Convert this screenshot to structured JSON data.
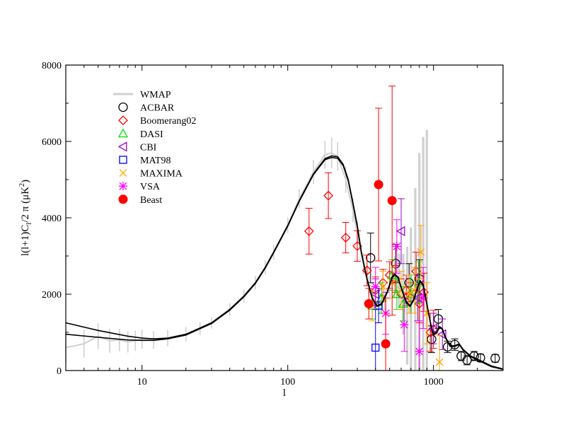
{
  "chart_data": {
    "type": "scatter",
    "xlabel": "l",
    "ylabel_text": "l(l+1)C",
    "ylabel_sub": "l",
    "ylabel_tail": "/2 π (μK",
    "ylabel_sup": "2",
    "ylabel_close": ")",
    "x_scale": "log",
    "xlim": [
      3,
      3000
    ],
    "ylim": [
      0,
      8000
    ],
    "x_tick_labels": [
      {
        "value": 10,
        "label": "10"
      },
      {
        "value": 100,
        "label": "100"
      },
      {
        "value": 1000,
        "label": "1000"
      }
    ],
    "y_tick_labels": [
      {
        "value": 0,
        "label": "0"
      },
      {
        "value": 2000,
        "label": "2000"
      },
      {
        "value": 4000,
        "label": "4000"
      },
      {
        "value": 6000,
        "label": "6000"
      },
      {
        "value": 8000,
        "label": "8000"
      }
    ],
    "grid": false,
    "legend_position": "top-left",
    "legend": [
      {
        "name": "WMAP",
        "marker": "line",
        "color": "#d0d0d0"
      },
      {
        "name": "ACBAR",
        "marker": "circle",
        "color": "#000000"
      },
      {
        "name": "Boomerang02",
        "marker": "diamond",
        "color": "#ff0000"
      },
      {
        "name": "DASI",
        "marker": "triangle-up",
        "color": "#00dd00"
      },
      {
        "name": "CBI",
        "marker": "triangle-left",
        "color": "#9900cc"
      },
      {
        "name": "MAT98",
        "marker": "square",
        "color": "#0000ff"
      },
      {
        "name": "MAXIMA",
        "marker": "x",
        "color": "#ffa500"
      },
      {
        "name": "VSA",
        "marker": "star",
        "color": "#ff00ff"
      },
      {
        "name": "Beast",
        "marker": "filled-circle",
        "color": "#ff0000"
      }
    ],
    "series": [
      {
        "name": "WMAP",
        "type": "band",
        "color": "#d0d0d0",
        "points": [
          [
            3,
            600
          ],
          [
            4,
            700
          ],
          [
            5,
            900
          ],
          [
            6,
            780
          ],
          [
            7,
            800
          ],
          [
            8,
            750
          ],
          [
            9,
            780
          ],
          [
            10,
            820
          ],
          [
            12,
            800
          ],
          [
            15,
            850
          ],
          [
            20,
            950
          ],
          [
            25,
            1100
          ],
          [
            30,
            1250
          ],
          [
            40,
            1600
          ],
          [
            50,
            1950
          ],
          [
            60,
            2300
          ],
          [
            70,
            2700
          ],
          [
            80,
            3100
          ],
          [
            100,
            3800
          ],
          [
            120,
            4500
          ],
          [
            150,
            5200
          ],
          [
            180,
            5650
          ],
          [
            200,
            5700
          ],
          [
            220,
            5600
          ],
          [
            250,
            5000
          ],
          [
            280,
            4200
          ],
          [
            300,
            3600
          ],
          [
            330,
            2800
          ],
          [
            360,
            2200
          ],
          [
            400,
            1800
          ],
          [
            430,
            1750
          ],
          [
            460,
            1900
          ],
          [
            500,
            2200
          ],
          [
            540,
            2450
          ],
          [
            580,
            2350
          ],
          [
            620,
            2000
          ],
          [
            660,
            1700
          ],
          [
            700,
            1750
          ],
          [
            750,
            2000
          ],
          [
            800,
            2200
          ],
          [
            850,
            2100
          ],
          [
            900,
            1800
          ]
        ],
        "error": [
          [
            3,
            400
          ],
          [
            10,
            250
          ],
          [
            30,
            150
          ],
          [
            100,
            200
          ],
          [
            200,
            400
          ],
          [
            300,
            300
          ],
          [
            400,
            250
          ],
          [
            500,
            350
          ],
          [
            600,
            800
          ],
          [
            700,
            2000
          ],
          [
            800,
            3500
          ],
          [
            900,
            4500
          ]
        ]
      },
      {
        "name": "Model",
        "type": "line",
        "color": "#000000",
        "points": [
          [
            3,
            1250
          ],
          [
            5,
            1050
          ],
          [
            8,
            900
          ],
          [
            10,
            850
          ],
          [
            12,
            830
          ],
          [
            15,
            850
          ],
          [
            20,
            950
          ],
          [
            30,
            1250
          ],
          [
            40,
            1600
          ],
          [
            50,
            1950
          ],
          [
            60,
            2300
          ],
          [
            70,
            2700
          ],
          [
            80,
            3100
          ],
          [
            100,
            3800
          ],
          [
            120,
            4450
          ],
          [
            150,
            5150
          ],
          [
            180,
            5550
          ],
          [
            200,
            5620
          ],
          [
            220,
            5600
          ],
          [
            240,
            5400
          ],
          [
            260,
            5000
          ],
          [
            280,
            4400
          ],
          [
            300,
            3800
          ],
          [
            320,
            3100
          ],
          [
            350,
            2400
          ],
          [
            380,
            1900
          ],
          [
            410,
            1700
          ],
          [
            440,
            1750
          ],
          [
            480,
            2050
          ],
          [
            520,
            2450
          ],
          [
            540,
            2530
          ],
          [
            570,
            2450
          ],
          [
            610,
            2100
          ],
          [
            650,
            1800
          ],
          [
            690,
            1700
          ],
          [
            730,
            1850
          ],
          [
            780,
            2200
          ],
          [
            810,
            2350
          ],
          [
            850,
            2250
          ],
          [
            900,
            1750
          ],
          [
            960,
            1200
          ],
          [
            1000,
            950
          ],
          [
            1050,
            1000
          ],
          [
            1100,
            1150
          ],
          [
            1150,
            1100
          ],
          [
            1200,
            900
          ],
          [
            1300,
            650
          ],
          [
            1400,
            650
          ],
          [
            1500,
            700
          ],
          [
            1600,
            550
          ],
          [
            1800,
            380
          ],
          [
            2000,
            300
          ],
          [
            2200,
            220
          ],
          [
            2500,
            120
          ],
          [
            3000,
            40
          ]
        ]
      },
      {
        "name": "Model2",
        "type": "line",
        "color": "#000000",
        "points": [
          [
            3,
            950
          ],
          [
            5,
            870
          ],
          [
            8,
            800
          ],
          [
            10,
            790
          ],
          [
            12,
            790
          ],
          [
            15,
            830
          ],
          [
            20,
            930
          ],
          [
            30,
            1230
          ],
          [
            40,
            1580
          ],
          [
            50,
            1930
          ],
          [
            60,
            2280
          ],
          [
            70,
            2680
          ],
          [
            80,
            3080
          ],
          [
            100,
            3780
          ],
          [
            120,
            4430
          ],
          [
            150,
            5130
          ],
          [
            180,
            5520
          ],
          [
            200,
            5580
          ],
          [
            220,
            5560
          ],
          [
            240,
            5370
          ],
          [
            260,
            4970
          ],
          [
            280,
            4370
          ],
          [
            300,
            3770
          ],
          [
            320,
            3080
          ],
          [
            350,
            2380
          ],
          [
            380,
            1880
          ],
          [
            410,
            1680
          ],
          [
            440,
            1730
          ],
          [
            480,
            2030
          ],
          [
            520,
            2430
          ],
          [
            540,
            2510
          ],
          [
            570,
            2430
          ],
          [
            610,
            2080
          ],
          [
            650,
            1780
          ],
          [
            690,
            1680
          ],
          [
            730,
            1830
          ],
          [
            780,
            2180
          ],
          [
            810,
            2330
          ],
          [
            850,
            2230
          ],
          [
            900,
            1730
          ],
          [
            960,
            1180
          ],
          [
            1000,
            930
          ],
          [
            1050,
            980
          ],
          [
            1100,
            1130
          ],
          [
            1150,
            1080
          ],
          [
            1200,
            880
          ],
          [
            1300,
            630
          ],
          [
            1400,
            630
          ],
          [
            1500,
            680
          ],
          [
            1600,
            530
          ],
          [
            1800,
            360
          ],
          [
            2000,
            280
          ],
          [
            2200,
            200
          ],
          [
            2500,
            100
          ],
          [
            3000,
            30
          ]
        ]
      },
      {
        "name": "ACBAR",
        "marker": "circle",
        "color": "#000000",
        "points": [
          [
            370,
            2950,
            650
          ],
          [
            550,
            2800,
            500
          ],
          [
            680,
            2300,
            500
          ],
          [
            800,
            2400,
            500
          ],
          [
            970,
            820,
            350
          ],
          [
            1080,
            1350,
            250
          ],
          [
            1250,
            620,
            150
          ],
          [
            1400,
            680,
            150
          ],
          [
            1550,
            380,
            120
          ],
          [
            1700,
            270,
            120
          ],
          [
            1900,
            380,
            120
          ],
          [
            2100,
            330,
            100
          ],
          [
            2650,
            320,
            100
          ]
        ]
      },
      {
        "name": "Boomerang02",
        "marker": "diamond",
        "color": "#ff0000",
        "points": [
          [
            140,
            3650,
            600
          ],
          [
            190,
            4580,
            600
          ],
          [
            250,
            3480,
            400
          ],
          [
            300,
            3260,
            400
          ],
          [
            350,
            2620,
            400
          ],
          [
            400,
            2100,
            350
          ],
          [
            450,
            2300,
            350
          ],
          [
            500,
            2500,
            350
          ],
          [
            550,
            2400,
            350
          ],
          [
            600,
            2000,
            400
          ],
          [
            650,
            2100,
            400
          ],
          [
            700,
            1900,
            400
          ],
          [
            760,
            2600,
            500
          ],
          [
            800,
            1750,
            500
          ],
          [
            860,
            2050,
            500
          ],
          [
            950,
            1000,
            500
          ],
          [
            1000,
            1080,
            500
          ]
        ]
      },
      {
        "name": "DASI",
        "marker": "triangle-up",
        "color": "#00dd00",
        "points": [
          [
            380,
            1700,
            350
          ],
          [
            440,
            1900,
            400
          ],
          [
            520,
            2500,
            400
          ],
          [
            560,
            2000,
            400
          ],
          [
            620,
            1750,
            450
          ],
          [
            700,
            2000,
            500
          ],
          [
            790,
            2300,
            550
          ]
        ]
      },
      {
        "name": "CBI",
        "marker": "triangle-left",
        "color": "#9900cc",
        "points": [
          [
            400,
            2000,
            400
          ],
          [
            600,
            3650,
            850
          ],
          [
            780,
            1900,
            600
          ],
          [
            1000,
            1100,
            400
          ],
          [
            1150,
            950,
            400
          ]
        ]
      },
      {
        "name": "MAT98",
        "marker": "square",
        "color": "#0000ff",
        "points": [
          [
            400,
            600,
            1000
          ],
          [
            420,
            1700,
            450
          ]
        ]
      },
      {
        "name": "MAXIMA",
        "marker": "x",
        "color": "#ffa500",
        "points": [
          [
            380,
            1700,
            400
          ],
          [
            450,
            2200,
            400
          ],
          [
            520,
            2300,
            400
          ],
          [
            600,
            2100,
            500
          ],
          [
            680,
            2000,
            500
          ],
          [
            740,
            2100,
            600
          ],
          [
            820,
            3100,
            700
          ],
          [
            900,
            1500,
            800
          ],
          [
            1100,
            220,
            700
          ]
        ]
      },
      {
        "name": "VSA",
        "marker": "star",
        "color": "#ff00ff",
        "points": [
          [
            400,
            2200,
            500
          ],
          [
            470,
            1500,
            550
          ],
          [
            560,
            3250,
            700
          ],
          [
            630,
            1200,
            700
          ],
          [
            800,
            500,
            800
          ],
          [
            850,
            1900,
            800
          ]
        ]
      },
      {
        "name": "Beast",
        "marker": "filled-circle",
        "color": "#ff0000",
        "points": [
          [
            360,
            1750,
            400
          ],
          [
            420,
            4870,
            2000
          ],
          [
            470,
            700,
            1200
          ],
          [
            520,
            4450,
            3000
          ]
        ]
      }
    ]
  }
}
